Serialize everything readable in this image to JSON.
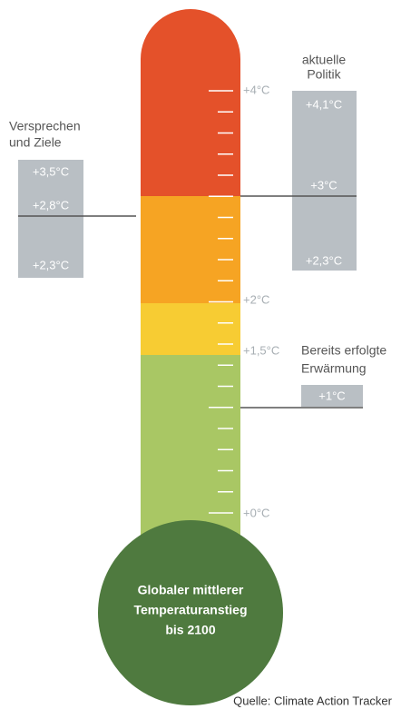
{
  "scale_labels": [
    "+4°C",
    "+2°C",
    "+1,5°C",
    "+0°C"
  ],
  "pledges": {
    "title": [
      "Versprechen",
      "und Ziele"
    ],
    "values": [
      "+3,5°C",
      "+2,8°C",
      "+2,3°C"
    ]
  },
  "current_policy": {
    "title": [
      "aktuelle",
      "Politik"
    ],
    "values": [
      "+4,1°C",
      "+3°C",
      "+2,3°C"
    ]
  },
  "observed": {
    "title": [
      "Bereits erfolgte",
      "Erwärmung"
    ],
    "value": "+1°C"
  },
  "bulb_text": [
    "Globaler mittlerer",
    "Temperaturanstieg",
    "bis 2100"
  ],
  "source": "Quelle: Climate Action Tracker"
}
